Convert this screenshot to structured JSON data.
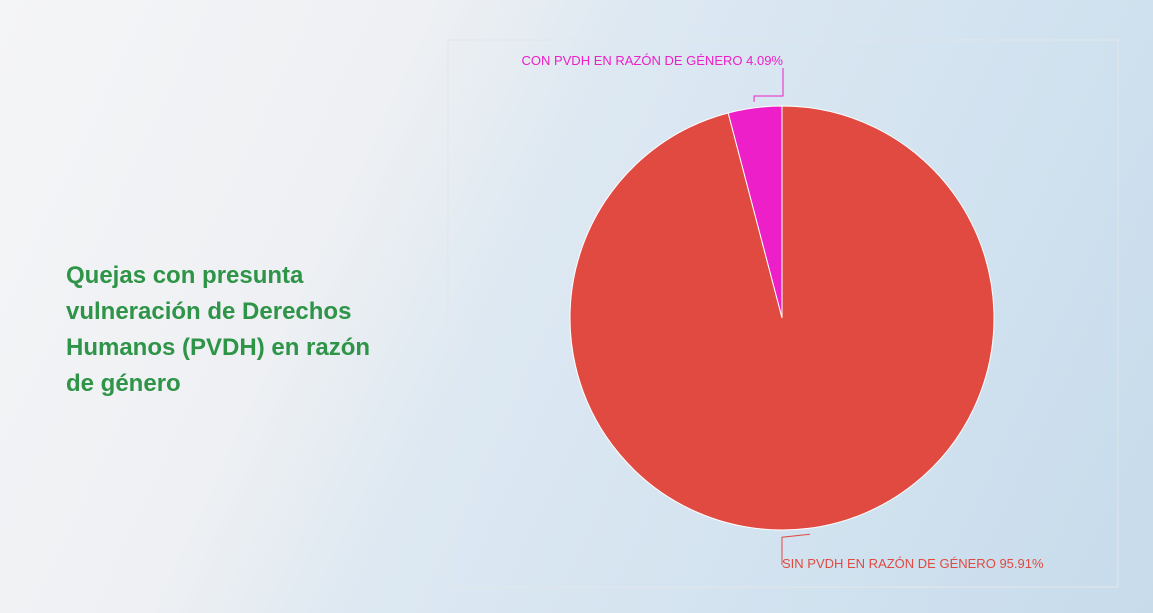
{
  "chart_data": {
    "type": "pie",
    "title": "Quejas con presunta vulneración de Derechos Humanos (PVDH) en razón de género",
    "categories": [
      "CON PVDH EN RAZÓN DE GÉNERO",
      "SIN PVDH EN RAZÓN DE GÉNERO"
    ],
    "values": [
      4.09,
      95.91
    ],
    "value_labels": [
      "4.09%",
      "95.91%"
    ],
    "colors": [
      "#ec1fc9",
      "#e04a40"
    ]
  }
}
